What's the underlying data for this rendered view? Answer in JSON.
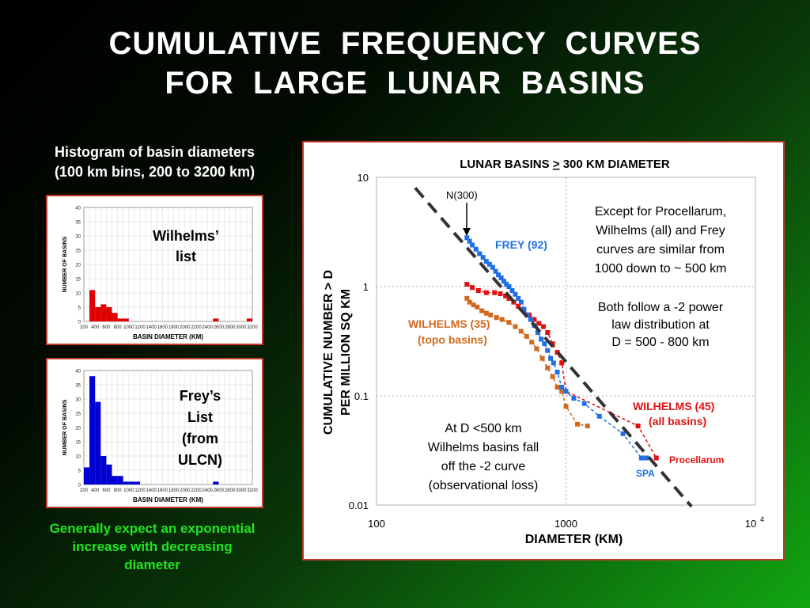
{
  "slide": {
    "title_line1": "CUMULATIVE  FREQUENCY  CURVES",
    "title_line2": "FOR  LARGE  LUNAR  BASINS",
    "left_caption_line1": "Histogram of basin diameters",
    "left_caption_line2": "(100 km bins, 200 to 3200 km)",
    "bottom_caption_line1": "Generally expect an exponential",
    "bottom_caption_line2": "increase with decreasing",
    "bottom_caption_line3": "diameter"
  },
  "chart_data": [
    {
      "type": "bar",
      "label_lines": [
        "Wilhelms’",
        "list"
      ],
      "xlabel": "BASIN DIAMETER (KM)",
      "ylabel": "NUMBER OF BASINS",
      "color": "#e00000",
      "bin_width": 100,
      "xlim": [
        200,
        3200
      ],
      "ylim": [
        0,
        40
      ],
      "yticks": [
        0,
        5,
        10,
        15,
        20,
        25,
        30,
        35,
        40
      ],
      "xticks": [
        "200",
        "400",
        "600",
        "800",
        "1000",
        "1200",
        "1400",
        "1600",
        "1800",
        "2000",
        "2200",
        "2400",
        "2600",
        "2800",
        "3000",
        "3200"
      ],
      "bins": [
        300,
        400,
        500,
        600,
        700,
        800,
        900,
        2500,
        3100
      ],
      "values": [
        11,
        5,
        6,
        5,
        3,
        1,
        1,
        1,
        1
      ]
    },
    {
      "type": "bar",
      "label_lines": [
        "Frey’s",
        "List",
        "(from",
        "ULCN)"
      ],
      "xlabel": "BASIN DIAMETER (KM)",
      "ylabel": "NUMBER OF BASINS",
      "color": "#0000d0",
      "bin_width": 100,
      "xlim": [
        200,
        3200
      ],
      "ylim": [
        0,
        40
      ],
      "yticks": [
        0,
        5,
        10,
        15,
        20,
        25,
        30,
        35,
        40
      ],
      "xticks": [
        "200",
        "400",
        "600",
        "800",
        "1000",
        "1200",
        "1400",
        "1600",
        "1800",
        "2000",
        "2200",
        "2400",
        "2600",
        "2800",
        "3000",
        "3200"
      ],
      "bins": [
        200,
        300,
        400,
        500,
        600,
        700,
        800,
        900,
        1000,
        1100,
        2500
      ],
      "values": [
        6,
        38,
        29,
        10,
        7,
        3,
        3,
        1,
        1,
        1,
        1
      ]
    },
    {
      "type": "scatter",
      "title_pre": "LUNAR BASINS ",
      "title_ge": ">",
      "title_post": " 300 KM DIAMETER",
      "xlabel": "DIAMETER (KM)",
      "ylabel_line1": "CUMULATIVE NUMBER > D",
      "ylabel_line2": "PER MILLION SQ KM",
      "xscale": "log",
      "yscale": "log",
      "xlim": [
        100,
        10000
      ],
      "ylim": [
        0.01,
        10
      ],
      "xticklabels": [
        "100",
        "1000",
        "10"
      ],
      "xtick_exponent": "4",
      "yticklabels": [
        "10",
        "1",
        "0.1",
        "0.01"
      ],
      "grid": "dotted",
      "series": [
        {
          "name": "FREY (92)",
          "color": "#1e6fe8",
          "x": [
            300,
            310,
            320,
            335,
            350,
            365,
            380,
            395,
            410,
            425,
            440,
            455,
            470,
            485,
            500,
            520,
            540,
            560,
            580,
            600,
            625,
            650,
            680,
            710,
            740,
            770,
            800,
            830,
            860,
            900,
            950,
            1000,
            1100,
            1250,
            1500,
            2000,
            2500,
            2650
          ],
          "y": [
            2.8,
            2.6,
            2.4,
            2.2,
            2.0,
            1.85,
            1.7,
            1.6,
            1.5,
            1.38,
            1.28,
            1.2,
            1.12,
            1.05,
            1.0,
            0.92,
            0.85,
            0.78,
            0.72,
            0.62,
            0.55,
            0.5,
            0.44,
            0.38,
            0.33,
            0.3,
            0.26,
            0.22,
            0.2,
            0.165,
            0.12,
            0.11,
            0.095,
            0.085,
            0.065,
            0.045,
            0.027,
            0.027
          ]
        },
        {
          "name": "WILHELMS (45)",
          "note": "(all basins)",
          "color": "#e01010",
          "x": [
            300,
            320,
            345,
            380,
            420,
            450,
            480,
            500,
            530,
            560,
            600,
            640,
            680,
            720,
            760,
            800,
            850,
            900,
            950,
            1000,
            2400,
            3000
          ],
          "y": [
            1.05,
            0.98,
            0.92,
            0.88,
            0.88,
            0.86,
            0.82,
            0.78,
            0.72,
            0.66,
            0.6,
            0.55,
            0.5,
            0.46,
            0.43,
            0.38,
            0.3,
            0.25,
            0.2,
            0.11,
            0.053,
            0.027
          ]
        },
        {
          "name": "WILHELMS (35)",
          "note": "(topo basins)",
          "color": "#d2691e",
          "x": [
            300,
            310,
            325,
            340,
            360,
            380,
            400,
            430,
            460,
            500,
            540,
            580,
            620,
            660,
            700,
            750,
            800,
            850,
            900,
            950,
            1000,
            1150,
            1300
          ],
          "y": [
            0.78,
            0.72,
            0.68,
            0.65,
            0.6,
            0.57,
            0.55,
            0.52,
            0.5,
            0.47,
            0.43,
            0.39,
            0.35,
            0.31,
            0.27,
            0.22,
            0.18,
            0.15,
            0.12,
            0.11,
            0.08,
            0.055,
            0.053
          ]
        }
      ],
      "reference_line": {
        "label": "-2 power law",
        "x": [
          160,
          4600
        ],
        "y": [
          8.0,
          0.0097
        ]
      },
      "annotations": {
        "n300": "N(300)",
        "procellarum": "Procellarum",
        "spa": "SPA",
        "note1": [
          "Except for Procellarum,",
          "Wilhelms (all) and Frey",
          "curves are similar from",
          "1000 down to ~ 500 km"
        ],
        "note2": [
          "Both follow a -2 power",
          "law distribution at",
          "D = 500 - 800 km"
        ],
        "note3": [
          "At D <500 km",
          "Wilhelms basins fall",
          "off the -2 curve",
          "(observational loss)"
        ]
      }
    }
  ]
}
